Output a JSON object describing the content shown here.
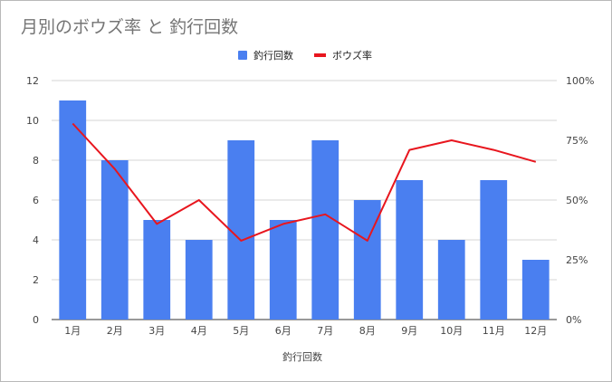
{
  "chart_data": {
    "type": "bar",
    "title": "月別のボウズ率 と 釣行回数",
    "xlabel": "釣行回数",
    "ylabel": "",
    "categories": [
      "1月",
      "2月",
      "3月",
      "4月",
      "5月",
      "6月",
      "7月",
      "8月",
      "9月",
      "10月",
      "11月",
      "12月"
    ],
    "series": [
      {
        "name": "釣行回数",
        "type": "bar",
        "axis": "left",
        "color": "#4a7ff0",
        "values": [
          11,
          8,
          5,
          4,
          9,
          5,
          9,
          6,
          7,
          4,
          7,
          3
        ]
      },
      {
        "name": "ボウズ率",
        "type": "line",
        "axis": "right",
        "color": "#e8161e",
        "values": [
          0.82,
          0.63,
          0.4,
          0.5,
          0.33,
          0.4,
          0.44,
          0.33,
          0.71,
          0.75,
          0.71,
          0.66
        ]
      }
    ],
    "ylim": [
      0,
      12
    ],
    "y_ticks": [
      0,
      2,
      4,
      6,
      8,
      10,
      12
    ],
    "y2lim": [
      0,
      1
    ],
    "y2_ticks": [
      "0%",
      "25%",
      "50%",
      "75%",
      "100%"
    ],
    "grid": true,
    "legend_position": "top-center"
  }
}
